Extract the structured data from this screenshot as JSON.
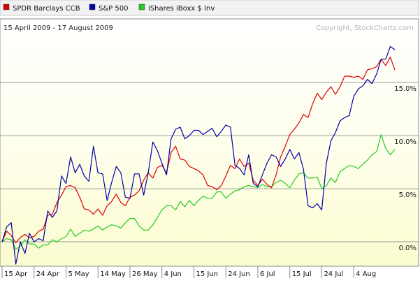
{
  "chart_data": {
    "type": "line",
    "legend": {
      "placement": "top",
      "items": [
        {
          "label": "SPDR Barclays CCB",
          "color": "#dd0000"
        },
        {
          "label": "S&P 500",
          "color": "#0000aa"
        },
        {
          "label": "iShares iBoxx $ Inv",
          "color": "#22cc22"
        }
      ]
    },
    "date_range": "15 April 2009 - 17 August 2009",
    "watermark": "Copyright, StockCharts.com",
    "ylim": [
      -2.3,
      21
    ],
    "yticks": [
      {
        "value": 0,
        "label": "0.0%"
      },
      {
        "value": 5,
        "label": "5.0%"
      },
      {
        "value": 10,
        "label": "10.0%"
      },
      {
        "value": 15,
        "label": "15.0%"
      }
    ],
    "xticks": [
      {
        "date": "2009-04-15",
        "label": "15 Apr"
      },
      {
        "date": "2009-04-24",
        "label": "24 Apr"
      },
      {
        "date": "2009-05-05",
        "label": "5 May"
      },
      {
        "date": "2009-05-14",
        "label": "14 May"
      },
      {
        "date": "2009-05-26",
        "label": "26 May"
      },
      {
        "date": "2009-06-04",
        "label": "4 Jun"
      },
      {
        "date": "2009-06-15",
        "label": "15 Jun"
      },
      {
        "date": "2009-06-24",
        "label": "24 Jun"
      },
      {
        "date": "2009-07-06",
        "label": "6 Jul"
      },
      {
        "date": "2009-07-15",
        "label": "15 Jul"
      },
      {
        "date": "2009-07-24",
        "label": "24 Jul"
      },
      {
        "date": "2009-08-04",
        "label": "4 Aug"
      }
    ],
    "dates": [
      "2009-04-15",
      "2009-04-16",
      "2009-04-17",
      "2009-04-20",
      "2009-04-21",
      "2009-04-22",
      "2009-04-23",
      "2009-04-24",
      "2009-04-27",
      "2009-04-28",
      "2009-04-29",
      "2009-04-30",
      "2009-05-01",
      "2009-05-04",
      "2009-05-05",
      "2009-05-06",
      "2009-05-07",
      "2009-05-08",
      "2009-05-11",
      "2009-05-12",
      "2009-05-13",
      "2009-05-14",
      "2009-05-15",
      "2009-05-18",
      "2009-05-19",
      "2009-05-20",
      "2009-05-21",
      "2009-05-22",
      "2009-05-26",
      "2009-05-27",
      "2009-05-28",
      "2009-05-29",
      "2009-06-01",
      "2009-06-02",
      "2009-06-03",
      "2009-06-04",
      "2009-06-05",
      "2009-06-08",
      "2009-06-09",
      "2009-06-10",
      "2009-06-11",
      "2009-06-12",
      "2009-06-15",
      "2009-06-16",
      "2009-06-17",
      "2009-06-18",
      "2009-06-19",
      "2009-06-22",
      "2009-06-23",
      "2009-06-24",
      "2009-06-25",
      "2009-06-26",
      "2009-06-29",
      "2009-06-30",
      "2009-07-01",
      "2009-07-02",
      "2009-07-06",
      "2009-07-07",
      "2009-07-08",
      "2009-07-09",
      "2009-07-10",
      "2009-07-13",
      "2009-07-14",
      "2009-07-15",
      "2009-07-16",
      "2009-07-17",
      "2009-07-20",
      "2009-07-21",
      "2009-07-22",
      "2009-07-23",
      "2009-07-24",
      "2009-07-27",
      "2009-07-28",
      "2009-07-29",
      "2009-07-30",
      "2009-07-31",
      "2009-08-03",
      "2009-08-04",
      "2009-08-05",
      "2009-08-06",
      "2009-08-07",
      "2009-08-10",
      "2009-08-11",
      "2009-08-12",
      "2009-08-13",
      "2009-08-14",
      "2009-08-17"
    ],
    "series": [
      {
        "name": "SPDR Barclays CCB",
        "color": "#dd0000",
        "values": [
          0.0,
          1.0,
          0.6,
          -0.1,
          0.4,
          0.7,
          0.4,
          0.5,
          1.0,
          1.2,
          2.5,
          2.6,
          3.7,
          4.4,
          5.2,
          5.3,
          5.1,
          4.2,
          3.1,
          3.0,
          2.6,
          3.1,
          2.5,
          3.4,
          3.8,
          4.5,
          3.7,
          3.4,
          4.2,
          4.4,
          4.8,
          5.8,
          6.5,
          6.0,
          7.0,
          7.2,
          6.5,
          8.4,
          9.0,
          7.8,
          7.7,
          7.1,
          6.9,
          6.7,
          6.3,
          5.3,
          5.2,
          4.9,
          5.3,
          6.2,
          7.2,
          6.9,
          7.8,
          7.1,
          7.4,
          5.8,
          5.3,
          5.9,
          5.4,
          5.1,
          6.3,
          8.0,
          9.0,
          10.1,
          10.6,
          11.2,
          12.0,
          11.7,
          13.0,
          14.0,
          13.4,
          14.1,
          14.6,
          13.9,
          14.6,
          15.6,
          15.6,
          15.5,
          15.6,
          15.3,
          16.2,
          16.3,
          16.5,
          17.2,
          16.6,
          17.4,
          16.2
        ]
      },
      {
        "name": "S&P 500",
        "color": "#0000aa",
        "values": [
          0.0,
          1.4,
          1.8,
          -2.1,
          0.0,
          -1.1,
          0.8,
          0.0,
          0.3,
          0.1,
          2.9,
          2.3,
          2.9,
          6.2,
          5.5,
          8.0,
          6.5,
          7.3,
          6.2,
          5.7,
          9.0,
          6.5,
          6.4,
          3.9,
          5.6,
          7.1,
          6.5,
          4.2,
          4.1,
          6.4,
          6.4,
          4.4,
          6.5,
          9.4,
          8.6,
          7.4,
          6.3,
          9.7,
          10.6,
          10.8,
          9.7,
          10.0,
          10.5,
          10.5,
          10.1,
          10.4,
          10.7,
          9.9,
          10.4,
          11.0,
          10.8,
          7.2,
          6.9,
          6.3,
          8.2,
          5.5,
          5.2,
          6.3,
          7.4,
          8.2,
          8.0,
          7.1,
          7.8,
          8.7,
          7.8,
          8.4,
          6.8,
          3.4,
          3.2,
          3.6,
          3.0,
          7.4,
          9.5,
          10.3,
          11.4,
          11.7,
          11.9,
          13.7,
          14.4,
          14.7,
          15.3,
          14.9,
          15.8,
          17.2,
          17.2,
          18.4,
          18.1
        ]
      },
      {
        "name": "iShares iBoxx $ Inv",
        "color": "#22cc22",
        "values": [
          0.0,
          0.3,
          0.2,
          -0.7,
          -0.4,
          0.2,
          -0.2,
          -0.2,
          -0.6,
          -0.3,
          -0.3,
          0.2,
          0.0,
          0.3,
          0.5,
          1.2,
          0.5,
          0.8,
          1.1,
          1.0,
          1.2,
          1.5,
          1.1,
          1.4,
          1.6,
          1.5,
          1.3,
          1.8,
          2.2,
          2.2,
          1.5,
          1.1,
          1.1,
          1.6,
          2.3,
          3.0,
          3.4,
          3.4,
          3.0,
          3.8,
          3.3,
          3.9,
          3.4,
          3.9,
          4.3,
          4.1,
          4.1,
          4.7,
          4.7,
          4.1,
          4.5,
          4.8,
          4.9,
          5.2,
          5.3,
          5.2,
          5.1,
          5.4,
          5.2,
          5.2,
          5.6,
          5.8,
          5.5,
          5.1,
          5.8,
          6.4,
          6.5,
          6.0,
          6.0,
          6.1,
          5.0,
          5.3,
          6.0,
          5.6,
          6.6,
          6.9,
          7.2,
          7.1,
          6.9,
          7.3,
          7.7,
          8.2,
          8.5,
          10.1,
          8.8,
          8.2,
          8.7
        ]
      }
    ]
  }
}
